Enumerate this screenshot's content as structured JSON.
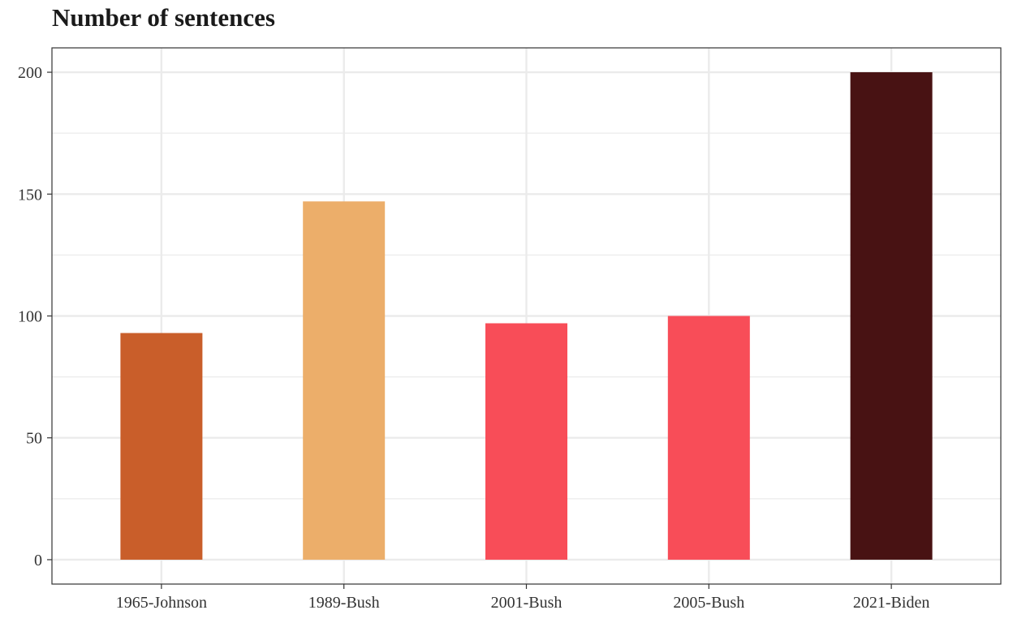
{
  "chart_data": {
    "type": "bar",
    "title": "Number of sentences",
    "xlabel": "",
    "ylabel": "",
    "categories": [
      "1965-Johnson",
      "1989-Bush",
      "2001-Bush",
      "2005-Bush",
      "2021-Biden"
    ],
    "values": [
      93,
      147,
      97,
      100,
      200
    ],
    "colors": [
      "#C95E2A",
      "#ECAE6A",
      "#F84D58",
      "#F84D58",
      "#481213"
    ],
    "ylim": [
      -10,
      210
    ],
    "yticks": [
      0,
      50,
      100,
      150,
      200
    ],
    "grid": true,
    "legend": "none",
    "background": "#ffffff",
    "grid_color": "#ebebeb",
    "panel_border_color": "#333333"
  }
}
